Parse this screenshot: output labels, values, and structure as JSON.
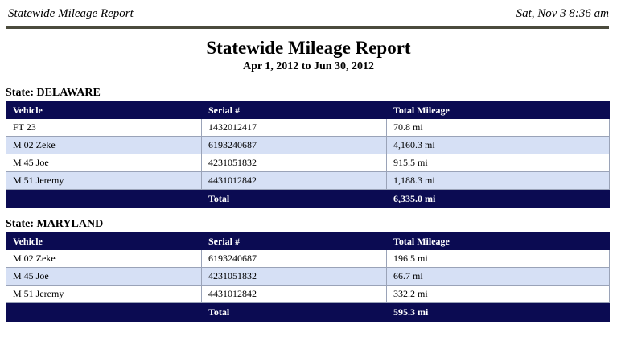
{
  "header": {
    "title": "Statewide Mileage Report",
    "timestamp": "Sat, Nov 3 8:36 am"
  },
  "report": {
    "title": "Statewide Mileage Report",
    "date_range": "Apr 1, 2012 to Jun 30, 2012"
  },
  "sections": [
    {
      "state_label": "State: DELAWARE",
      "columns": [
        "Vehicle",
        "Serial #",
        "Total Mileage"
      ],
      "rows": [
        [
          "FT 23",
          "1432012417",
          "70.8 mi"
        ],
        [
          "M 02 Zeke",
          "6193240687",
          "4,160.3 mi"
        ],
        [
          "M 45 Joe",
          "4231051832",
          "915.5 mi"
        ],
        [
          "M 51 Jeremy",
          "4431012842",
          "1,188.3 mi"
        ]
      ],
      "total": {
        "label": "Total",
        "value": "6,335.0 mi"
      }
    },
    {
      "state_label": "State: MARYLAND",
      "columns": [
        "Vehicle",
        "Serial #",
        "Total Mileage"
      ],
      "rows": [
        [
          "M 02 Zeke",
          "6193240687",
          "196.5 mi"
        ],
        [
          "M 45 Joe",
          "4231051832",
          "66.7 mi"
        ],
        [
          "M 51 Jeremy",
          "4431012842",
          "332.2 mi"
        ]
      ],
      "total": {
        "label": "Total",
        "value": "595.3 mi"
      }
    }
  ]
}
